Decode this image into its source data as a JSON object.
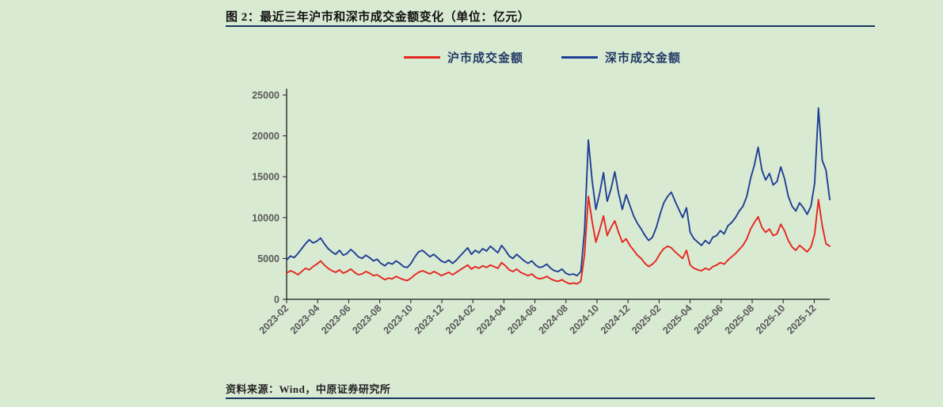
{
  "page": {
    "title": "图 2：最近三年沪市和深市成交金额变化（单位：亿元）",
    "source": "资料来源：Wind，中原证券研究所",
    "background": "#d9ead3",
    "rule_color": "#17375e"
  },
  "chart_data": {
    "type": "line",
    "title": "最近三年沪市和深市成交金额变化",
    "unit": "亿元",
    "xlabel": "",
    "ylabel": "",
    "ylim": [
      0,
      25000
    ],
    "yticks": [
      0,
      5000,
      10000,
      15000,
      20000,
      25000
    ],
    "grid": false,
    "legend_position": "top-center",
    "axis_color": "#1a1a1a",
    "tick_label_color": "#595959",
    "x_months_total": 35,
    "x_start": "2023-02",
    "x_end": "2026-01",
    "xtick_labels": [
      "2023-02",
      "2023-04",
      "2023-06",
      "2023-08",
      "2023-10",
      "2023-12",
      "2024-02",
      "2024-04",
      "2024-06",
      "2024-08",
      "2024-10",
      "2024-12",
      "2025-02",
      "2025-04",
      "2025-06",
      "2025-08",
      "2025-10",
      "2025-12"
    ],
    "series": [
      {
        "name": "沪市成交金额",
        "color": "#e5261f",
        "values": [
          3200,
          3500,
          3300,
          3000,
          3400,
          3800,
          3600,
          4000,
          4300,
          4700,
          4200,
          3800,
          3500,
          3300,
          3600,
          3200,
          3400,
          3700,
          3300,
          3000,
          3100,
          3400,
          3200,
          2900,
          3000,
          2700,
          2400,
          2600,
          2500,
          2800,
          2600,
          2400,
          2300,
          2600,
          3000,
          3300,
          3500,
          3300,
          3100,
          3400,
          3200,
          2900,
          3100,
          3300,
          3000,
          3300,
          3600,
          3900,
          4200,
          3700,
          4000,
          3800,
          4100,
          3900,
          4200,
          4000,
          3800,
          4500,
          4100,
          3600,
          3400,
          3700,
          3300,
          3100,
          2900,
          3100,
          2700,
          2500,
          2600,
          2800,
          2500,
          2300,
          2200,
          2400,
          2100,
          1900,
          2000,
          1900,
          2200,
          5500,
          12600,
          9500,
          7000,
          8500,
          10200,
          7800,
          8800,
          9600,
          8200,
          7000,
          7400,
          6600,
          6000,
          5400,
          5000,
          4400,
          4000,
          4300,
          4800,
          5600,
          6200,
          6500,
          6300,
          5800,
          5400,
          5000,
          6000,
          4200,
          3800,
          3600,
          3500,
          3800,
          3600,
          4000,
          4200,
          4500,
          4300,
          4800,
          5200,
          5600,
          6100,
          6600,
          7400,
          8600,
          9400,
          10100,
          8800,
          8200,
          8600,
          7800,
          8000,
          9200,
          8400,
          7200,
          6400,
          6000,
          6600,
          6200,
          5800,
          6400,
          8000,
          12200,
          9000,
          6800,
          6500
        ]
      },
      {
        "name": "深市成交金额",
        "color": "#203f94",
        "values": [
          4800,
          5300,
          5100,
          5600,
          6200,
          6800,
          7300,
          6900,
          7100,
          7500,
          6800,
          6200,
          5800,
          5500,
          6000,
          5400,
          5600,
          6100,
          5700,
          5200,
          5000,
          5400,
          5100,
          4700,
          4900,
          4400,
          4100,
          4500,
          4300,
          4700,
          4400,
          4000,
          3900,
          4400,
          5200,
          5800,
          6000,
          5600,
          5200,
          5500,
          5100,
          4700,
          4500,
          4800,
          4400,
          4800,
          5300,
          5800,
          6300,
          5500,
          6000,
          5700,
          6200,
          5900,
          6500,
          6100,
          5700,
          6600,
          6000,
          5300,
          5000,
          5500,
          5100,
          4700,
          4400,
          4700,
          4200,
          3900,
          4000,
          4300,
          3800,
          3500,
          3400,
          3700,
          3200,
          3000,
          3100,
          2900,
          3400,
          8500,
          19500,
          14500,
          11000,
          13000,
          15500,
          12000,
          13500,
          15600,
          13000,
          11000,
          12800,
          11500,
          10200,
          9300,
          8600,
          7800,
          7200,
          7600,
          8800,
          10400,
          11800,
          12600,
          13100,
          12000,
          11000,
          10000,
          11200,
          8200,
          7400,
          7000,
          6600,
          7200,
          6800,
          7600,
          7800,
          8400,
          8000,
          9000,
          9400,
          10000,
          10800,
          11400,
          12600,
          14800,
          16400,
          18600,
          15800,
          14600,
          15400,
          14000,
          14400,
          16200,
          14800,
          12600,
          11400,
          10800,
          11800,
          11200,
          10400,
          11400,
          14200,
          23400,
          17000,
          15800,
          12200
        ]
      }
    ]
  }
}
